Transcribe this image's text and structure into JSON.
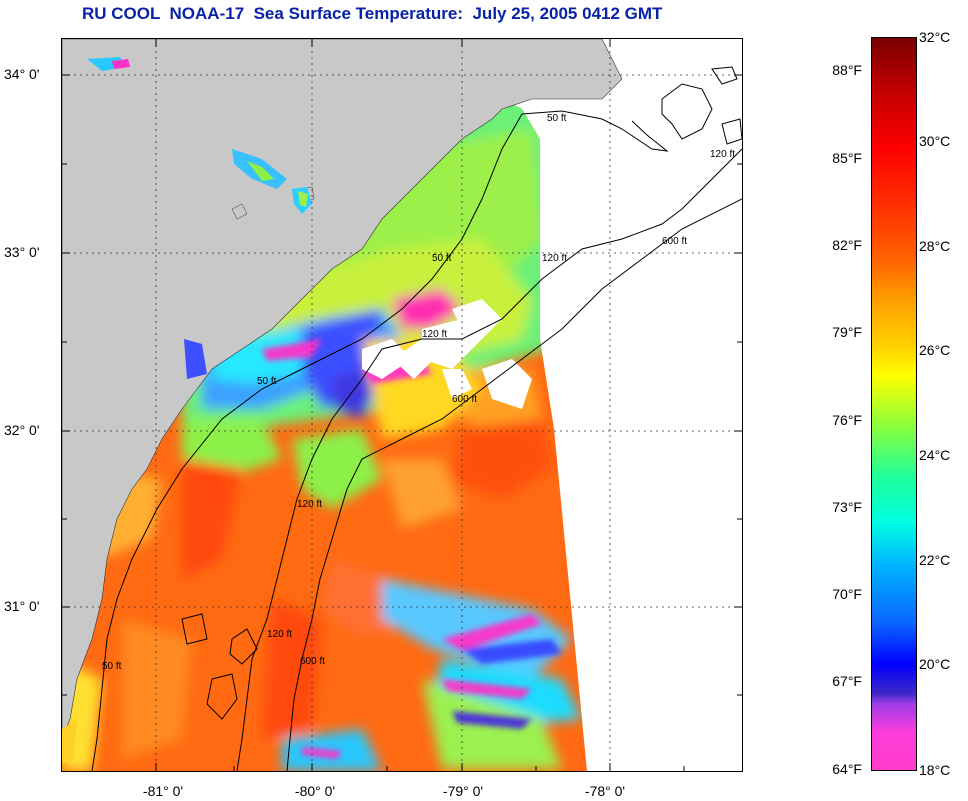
{
  "title": "RU COOL  NOAA-17  Sea Surface Temperature:  July 25, 2005 0412 GMT",
  "map": {
    "latitude_labels": [
      "34° 0'",
      "33° 0'",
      "32° 0'",
      "31° 0'"
    ],
    "longitude_labels": [
      "-81° 0'",
      "-80° 0'",
      "-79° 0'",
      "-78° 0'"
    ],
    "isobath_labels": [
      "50 ft",
      "120 ft",
      "600 ft"
    ],
    "colors": {
      "land": "#c8c8c8",
      "no_data": "#ffffff",
      "isobath": "#000000",
      "grid": "#333333"
    }
  },
  "colorbar": {
    "fahrenheit_labels": [
      "88°F",
      "85°F",
      "82°F",
      "79°F",
      "76°F",
      "73°F",
      "70°F",
      "67°F",
      "64°F"
    ],
    "celsius_labels": [
      "32°C",
      "30°C",
      "28°C",
      "26°C",
      "24°C",
      "22°C",
      "20°C",
      "18°C"
    ],
    "range_celsius": [
      18,
      32
    ]
  }
}
